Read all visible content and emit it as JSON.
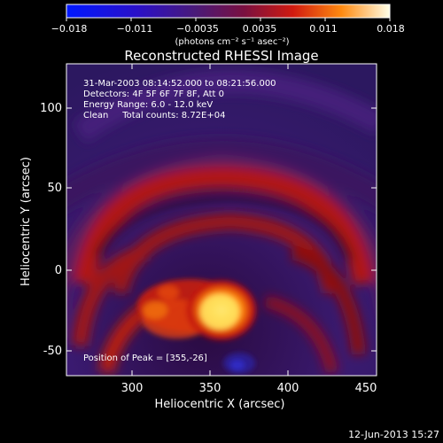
{
  "colorbar": {
    "ticks": [
      "−0.018",
      "−0.011",
      "−0.0035",
      "0.0035",
      "0.011",
      "0.018"
    ],
    "unit_label": "(photons cm⁻² s⁻¹ asec⁻²)"
  },
  "image": {
    "title": "Reconstructed RHESSI Image",
    "annotation_lines": [
      "31-Mar-2003 08:14:52.000 to 08:21:56.000",
      "Detectors: 4F 5F 6F 7F 8F, Att 0",
      "Energy Range: 6.0 - 12.0 keV",
      "Clean     Total counts: 8.72E+04"
    ],
    "peak_label": "Position of Peak = [355,-26]"
  },
  "axes": {
    "xlabel": "Heliocentric X (arcsec)",
    "ylabel": "Heliocentric Y (arcsec)",
    "xticks": [
      "300",
      "350",
      "400",
      "450"
    ],
    "yticks": [
      "100",
      "50",
      "0",
      "-50"
    ]
  },
  "footer": {
    "timestamp": "12-Jun-2013 15:27"
  }
}
